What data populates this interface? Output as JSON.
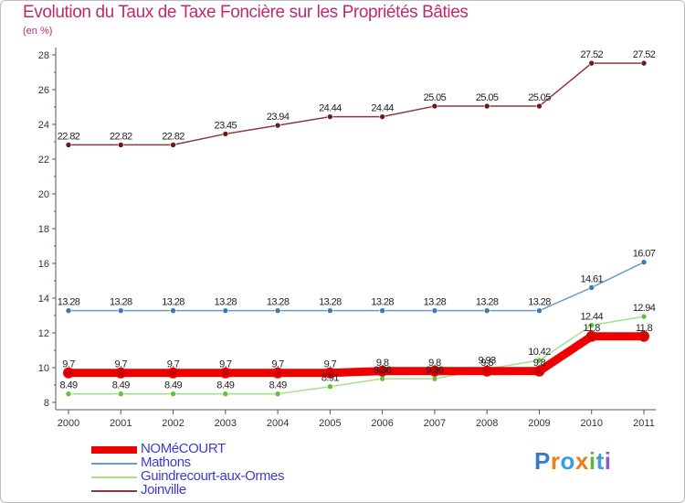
{
  "page": {
    "title": "Evolution du Taux de Taxe Foncière sur les Propriétés Bâties",
    "unit_label": "(en %)",
    "logo_text": "Proxiti"
  },
  "colors": {
    "title": "#c02a6a",
    "axis": "#555555",
    "legend_text": "#3c3cd0",
    "tick_mark": "#c0282d"
  },
  "chart_data": {
    "type": "line",
    "title": "Evolution du Taux de Taxe Foncière sur les Propriétés Bâties",
    "ylabel": "(en %)",
    "xlabel": "",
    "x": [
      "2000",
      "2001",
      "2002",
      "2003",
      "2004",
      "2005",
      "2006",
      "2007",
      "2008",
      "2009",
      "2010",
      "2011"
    ],
    "ylim": [
      8,
      28
    ],
    "yticks": [
      8,
      10,
      12,
      14,
      16,
      18,
      20,
      22,
      24,
      26,
      28
    ],
    "grid": false,
    "legend_position": "bottom-left",
    "series": [
      {
        "name": "Joinville",
        "color": "#8b3a3a",
        "marker": "#6b1a1a",
        "values": [
          22.82,
          22.82,
          22.82,
          23.45,
          23.94,
          24.44,
          24.44,
          25.05,
          25.05,
          25.05,
          27.52,
          27.52
        ],
        "labels": [
          "22.82",
          "22.82",
          "22.82",
          "23.45",
          "23.94",
          "24.44",
          "24.44",
          "25.05",
          "25.05",
          "25.05",
          "27.52",
          "27.52"
        ]
      },
      {
        "name": "Mathons",
        "color": "#6a9cc8",
        "marker": "#3b78b5",
        "values": [
          13.28,
          13.28,
          13.28,
          13.28,
          13.28,
          13.28,
          13.28,
          13.28,
          13.28,
          13.28,
          14.61,
          16.07
        ],
        "labels": [
          "13.28",
          "13.28",
          "13.28",
          "13.28",
          "13.28",
          "13.28",
          "13.28",
          "13.28",
          "13.28",
          "13.28",
          "14.61",
          "16.07"
        ]
      },
      {
        "name": "Guindrecourt-aux-Ormes",
        "color": "#a6e08a",
        "marker": "#5cc43a",
        "values": [
          8.49,
          8.49,
          8.49,
          8.49,
          8.49,
          8.91,
          9.36,
          9.36,
          9.93,
          10.42,
          12.44,
          12.94
        ],
        "labels": [
          "8.49",
          "8.49",
          "8.49",
          "8.49",
          "8.49",
          "8.91",
          "9.36",
          "9.36",
          "9.93",
          "10.42",
          "12.44",
          "12.94"
        ]
      },
      {
        "name": "NOMéCOURT",
        "color": "#ee0000",
        "marker": "#cc0000",
        "values": [
          9.7,
          9.7,
          9.7,
          9.7,
          9.7,
          9.7,
          9.8,
          9.8,
          9.8,
          9.8,
          11.8,
          11.8
        ],
        "labels": [
          "9.7",
          "9.7",
          "9.7",
          "9.7",
          "9.7",
          "9.7",
          "9.8",
          "9.8",
          "9.8",
          "9.8",
          "11.8",
          "11.8"
        ]
      }
    ],
    "legend": [
      "NOMéCOURT",
      "Mathons",
      "Guindrecourt-aux-Ormes",
      "Joinville"
    ]
  }
}
